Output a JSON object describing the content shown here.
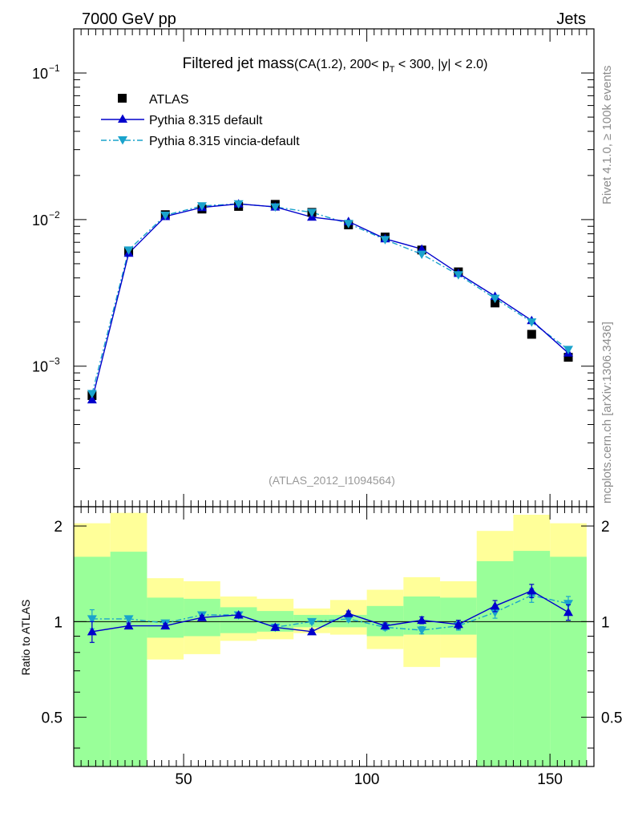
{
  "header": {
    "left": "7000 GeV pp",
    "right": "Jets"
  },
  "side_labels": {
    "rivet": "Rivet 4.1.0, ≥ 100k events",
    "mcplots": "mcplots.cern.ch [arXiv:1306.3436]"
  },
  "title": {
    "main": "Filtered jet mass",
    "cond_pre": "(CA(1.2), 200< p",
    "cond_sub": "T",
    "cond_post": " < 300, |y| < 2.0)"
  },
  "analysis_id": "(ATLAS_2012_I1094564)",
  "legend": {
    "atlas": "ATLAS",
    "default": "Pythia 8.315 default",
    "vincia": "Pythia 8.315 vincia-default"
  },
  "colors": {
    "data": "#000000",
    "default": "#0000cc",
    "vincia": "#1aa3cc",
    "band_green": "#99ff99",
    "band_yellow": "#ffff99",
    "title_gray": "#999999"
  },
  "chart_data": [
    {
      "type": "scatter",
      "scale": "log",
      "title": "Filtered jet mass (CA(1.2), 200< pT < 300, |y| < 2.0)",
      "xlim": [
        20,
        162
      ],
      "ylim": [
        0.00011,
        0.2
      ],
      "yticks": [
        {
          "value": 0.1,
          "label": "10",
          "exp": "−1"
        },
        {
          "value": 0.01,
          "label": "10",
          "exp": "−2"
        },
        {
          "value": 0.001,
          "label": "10",
          "exp": "−3"
        }
      ],
      "x": [
        25,
        35,
        45,
        55,
        65,
        75,
        85,
        95,
        105,
        115,
        125,
        135,
        145,
        155
      ],
      "series": [
        {
          "name": "ATLAS",
          "marker": "square",
          "values": [
            0.00063,
            0.0061,
            0.0108,
            0.0118,
            0.0123,
            0.0127,
            0.0112,
            0.0092,
            0.0076,
            0.0062,
            0.0044,
            0.0027,
            0.00165,
            0.00115
          ]
        },
        {
          "name": "Pythia 8.315 default",
          "marker": "triangle-up",
          "line": "solid",
          "values": [
            0.00059,
            0.0059,
            0.0105,
            0.0121,
            0.0128,
            0.0122,
            0.0104,
            0.0097,
            0.0074,
            0.0063,
            0.0043,
            0.003,
            0.00205,
            0.00123
          ]
        },
        {
          "name": "Pythia 8.315 vincia-default",
          "marker": "triangle-down",
          "line": "dashdot",
          "values": [
            0.00065,
            0.0062,
            0.0107,
            0.0124,
            0.0128,
            0.0122,
            0.0112,
            0.0094,
            0.0073,
            0.0058,
            0.0042,
            0.0029,
            0.002,
            0.0013
          ]
        }
      ]
    },
    {
      "type": "scatter",
      "ylabel": "Ratio to ATLAS",
      "xlim": [
        20,
        162
      ],
      "ylim": [
        0.35,
        2.3
      ],
      "scale": "log",
      "xticks": [
        50,
        100,
        150
      ],
      "yticks": [
        0.5,
        1,
        2
      ],
      "ytick_labels": [
        "0.5",
        "1",
        "2"
      ],
      "x": [
        25,
        35,
        45,
        55,
        65,
        75,
        85,
        95,
        105,
        115,
        125,
        135,
        145,
        155
      ],
      "bins": [
        [
          20,
          30
        ],
        [
          30,
          40
        ],
        [
          40,
          50
        ],
        [
          50,
          60
        ],
        [
          60,
          70
        ],
        [
          70,
          80
        ],
        [
          80,
          90
        ],
        [
          90,
          100
        ],
        [
          100,
          110
        ],
        [
          110,
          120
        ],
        [
          120,
          130
        ],
        [
          130,
          140
        ],
        [
          140,
          150
        ],
        [
          150,
          160
        ]
      ],
      "band_green": [
        [
          0.33,
          1.6
        ],
        [
          0.33,
          1.66
        ],
        [
          0.89,
          1.19
        ],
        [
          0.9,
          1.18
        ],
        [
          0.92,
          1.11
        ],
        [
          0.93,
          1.08
        ],
        [
          0.96,
          1.05
        ],
        [
          0.96,
          1.05
        ],
        [
          0.9,
          1.12
        ],
        [
          0.91,
          1.2
        ],
        [
          0.91,
          1.19
        ],
        [
          0.33,
          1.55
        ],
        [
          0.33,
          1.67
        ],
        [
          0.33,
          1.6
        ]
      ],
      "band_yellow": [
        [
          0.43,
          2.04
        ],
        [
          0.33,
          2.2
        ],
        [
          0.76,
          1.37
        ],
        [
          0.79,
          1.34
        ],
        [
          0.87,
          1.2
        ],
        [
          0.88,
          1.18
        ],
        [
          0.92,
          1.1
        ],
        [
          0.91,
          1.17
        ],
        [
          0.82,
          1.26
        ],
        [
          0.72,
          1.38
        ],
        [
          0.77,
          1.34
        ],
        [
          0.53,
          1.93
        ],
        [
          0.33,
          2.17
        ],
        [
          0.45,
          2.04
        ]
      ],
      "series": [
        {
          "name": "Pythia 8.315 default",
          "values": [
            0.93,
            0.97,
            0.97,
            1.03,
            1.05,
            0.96,
            0.93,
            1.06,
            0.97,
            1.01,
            0.98,
            1.12,
            1.25,
            1.07
          ],
          "errors": [
            0.07,
            0.02,
            0.015,
            0.015,
            0.015,
            0.015,
            0.015,
            0.02,
            0.02,
            0.025,
            0.03,
            0.045,
            0.06,
            0.06
          ]
        },
        {
          "name": "Pythia 8.315 vincia-default",
          "values": [
            1.02,
            1.02,
            0.99,
            1.05,
            1.05,
            0.96,
            1.0,
            1.02,
            0.96,
            0.94,
            0.97,
            1.07,
            1.21,
            1.14
          ],
          "errors": [
            0.07,
            0.02,
            0.015,
            0.015,
            0.015,
            0.015,
            0.015,
            0.02,
            0.02,
            0.025,
            0.03,
            0.045,
            0.06,
            0.06
          ]
        }
      ]
    }
  ]
}
